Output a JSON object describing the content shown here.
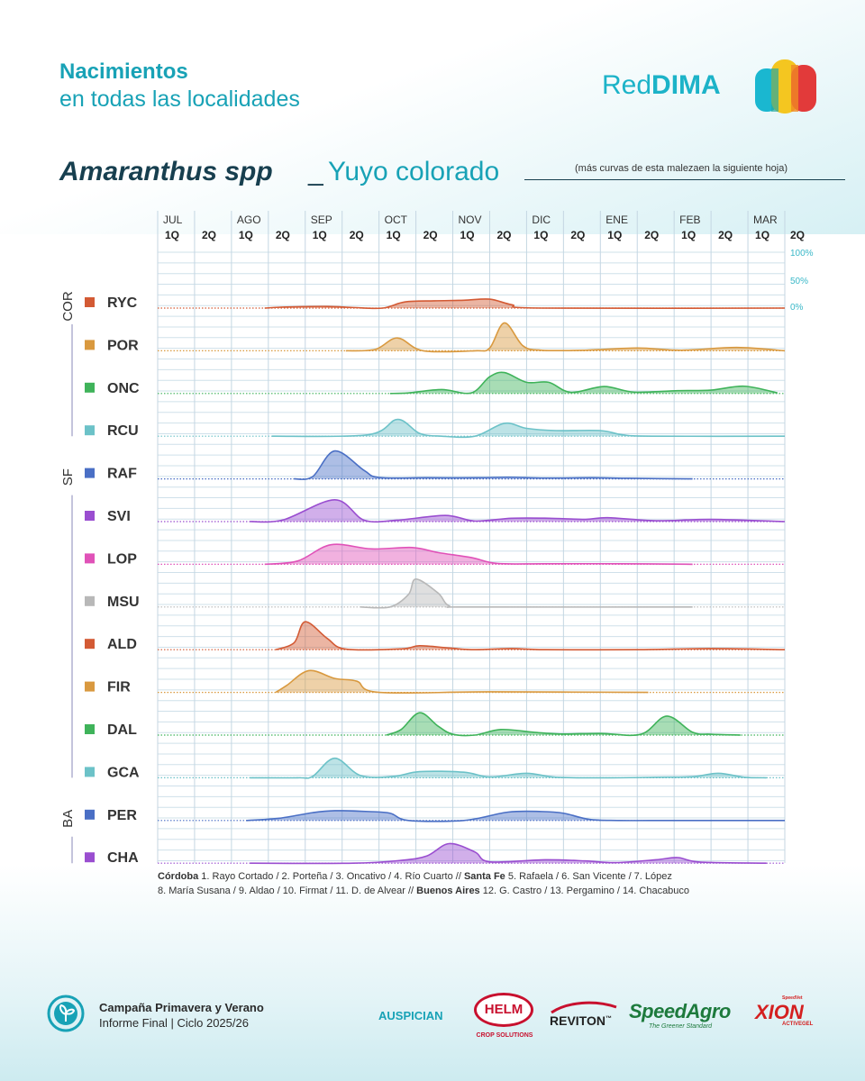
{
  "header": {
    "title": "Nacimientos",
    "subtitle": "en todas las localidades",
    "brand_prefix": "Red",
    "brand_bold": "DIMA"
  },
  "species": {
    "scientific": "Amaranthus spp",
    "separator": "_",
    "common": "Yuyo colorado",
    "note": "(más curvas de esta malezaen la siguiente hoja)"
  },
  "chart_data": {
    "type": "area",
    "x_periods": [
      "1Q",
      "2Q",
      "1Q",
      "2Q",
      "1Q",
      "2Q",
      "1Q",
      "2Q",
      "1Q",
      "2Q",
      "1Q",
      "2Q",
      "1Q",
      "2Q",
      "1Q",
      "2Q",
      "1Q",
      "2Q"
    ],
    "months": [
      "JUL",
      "AGO",
      "SEP",
      "OCT",
      "NOV",
      "DIC",
      "ENE",
      "FEB",
      "MAR"
    ],
    "y_scale_labels": [
      "100%",
      "50%",
      "0%"
    ],
    "groups": [
      {
        "name": "COR",
        "rows": [
          "RYC",
          "POR",
          "ONC",
          "RCU"
        ]
      },
      {
        "name": "SF",
        "rows": [
          "RAF",
          "SVI",
          "LOP",
          "MSU",
          "ALD",
          "FIR",
          "DAL",
          "GCA"
        ]
      },
      {
        "name": "BA",
        "rows": [
          "PER",
          "CHA"
        ]
      }
    ],
    "series": [
      {
        "name": "RYC",
        "color": "#d35a34",
        "points": [
          [
            2.9,
            0
          ],
          [
            3.5,
            0.04
          ],
          [
            4.6,
            0.06
          ],
          [
            5.3,
            0.02
          ],
          [
            6.1,
            0.0
          ],
          [
            6.7,
            0.22
          ],
          [
            7.5,
            0.26
          ],
          [
            8.3,
            0.28
          ],
          [
            9.0,
            0.32
          ],
          [
            9.6,
            0.12
          ],
          [
            10.4,
            0.0
          ],
          [
            17,
            0
          ]
        ]
      },
      {
        "name": "POR",
        "color": "#d9993f",
        "points": [
          [
            5.1,
            0
          ],
          [
            5.9,
            0.05
          ],
          [
            6.5,
            0.46
          ],
          [
            7.2,
            0.0
          ],
          [
            8.6,
            0.0
          ],
          [
            9.0,
            0.1
          ],
          [
            9.4,
            1.0
          ],
          [
            9.9,
            0.18
          ],
          [
            10.4,
            0.02
          ],
          [
            11.6,
            0.02
          ],
          [
            13.0,
            0.1
          ],
          [
            14.2,
            0.02
          ],
          [
            15.7,
            0.12
          ],
          [
            17,
            0
          ]
        ]
      },
      {
        "name": "ONC",
        "color": "#3fb35a",
        "points": [
          [
            6.3,
            0
          ],
          [
            6.8,
            0.02
          ],
          [
            7.7,
            0.14
          ],
          [
            8.5,
            0.02
          ],
          [
            9.0,
            0.6
          ],
          [
            9.4,
            0.75
          ],
          [
            10.0,
            0.4
          ],
          [
            10.6,
            0.4
          ],
          [
            11.2,
            0.04
          ],
          [
            12.1,
            0.25
          ],
          [
            12.9,
            0.05
          ],
          [
            14.1,
            0.1
          ],
          [
            15.0,
            0.12
          ],
          [
            15.9,
            0.26
          ],
          [
            16.8,
            0.02
          ]
        ]
      },
      {
        "name": "RCU",
        "color": "#6cc2c8",
        "points": [
          [
            3.1,
            0
          ],
          [
            5.7,
            0.05
          ],
          [
            6.5,
            0.6
          ],
          [
            7.1,
            0.1
          ],
          [
            7.7,
            0.0
          ],
          [
            8.6,
            0.0
          ],
          [
            9.4,
            0.46
          ],
          [
            10.0,
            0.28
          ],
          [
            10.8,
            0.2
          ],
          [
            12.0,
            0.2
          ],
          [
            12.6,
            0.05
          ],
          [
            13.4,
            0.0
          ],
          [
            17,
            0
          ]
        ]
      },
      {
        "name": "RAF",
        "color": "#4a6fc5",
        "points": [
          [
            3.7,
            0
          ],
          [
            4.2,
            0.08
          ],
          [
            4.8,
            1.0
          ],
          [
            5.6,
            0.3
          ],
          [
            6.0,
            0.05
          ],
          [
            7.3,
            0.04
          ],
          [
            8.7,
            0.04
          ],
          [
            9.5,
            0.06
          ],
          [
            10.5,
            0.03
          ],
          [
            11.8,
            0.04
          ],
          [
            12.8,
            0.02
          ],
          [
            14.5,
            0.0
          ]
        ]
      },
      {
        "name": "SVI",
        "color": "#9a4ed0",
        "points": [
          [
            2.5,
            0
          ],
          [
            3.4,
            0.06
          ],
          [
            4.8,
            0.78
          ],
          [
            5.6,
            0.05
          ],
          [
            6.5,
            0.05
          ],
          [
            7.8,
            0.22
          ],
          [
            8.6,
            0.02
          ],
          [
            9.6,
            0.12
          ],
          [
            10.6,
            0.12
          ],
          [
            11.6,
            0.08
          ],
          [
            12.2,
            0.14
          ],
          [
            13.5,
            0.03
          ],
          [
            15.0,
            0.08
          ],
          [
            17,
            0
          ]
        ]
      },
      {
        "name": "LOP",
        "color": "#e052b8",
        "points": [
          [
            2.9,
            0
          ],
          [
            3.8,
            0.12
          ],
          [
            4.7,
            0.7
          ],
          [
            5.8,
            0.55
          ],
          [
            6.9,
            0.6
          ],
          [
            7.6,
            0.42
          ],
          [
            8.5,
            0.24
          ],
          [
            9.2,
            0.03
          ],
          [
            10.5,
            0.02
          ],
          [
            12.5,
            0.02
          ],
          [
            14.5,
            0.0
          ]
        ]
      },
      {
        "name": "MSU",
        "color": "#b8b8b8",
        "points": [
          [
            5.5,
            0
          ],
          [
            6.3,
            0.0
          ],
          [
            6.8,
            0.45
          ],
          [
            7.0,
            1.0
          ],
          [
            7.6,
            0.5
          ],
          [
            7.9,
            0.04
          ],
          [
            8.5,
            0.0
          ],
          [
            14.5,
            0
          ]
        ]
      },
      {
        "name": "ALD",
        "color": "#d35a34",
        "points": [
          [
            3.2,
            0
          ],
          [
            3.7,
            0.25
          ],
          [
            4.0,
            1.0
          ],
          [
            4.6,
            0.4
          ],
          [
            5.1,
            0.02
          ],
          [
            6.6,
            0.03
          ],
          [
            7.1,
            0.14
          ],
          [
            7.9,
            0.06
          ],
          [
            8.6,
            0.0
          ],
          [
            9.6,
            0.04
          ],
          [
            10.5,
            0.0
          ],
          [
            13.0,
            0.0
          ],
          [
            15.0,
            0.04
          ],
          [
            17,
            0
          ]
        ]
      },
      {
        "name": "FIR",
        "color": "#d9993f",
        "points": [
          [
            3.2,
            0
          ],
          [
            3.5,
            0.25
          ],
          [
            4.1,
            0.78
          ],
          [
            4.8,
            0.5
          ],
          [
            5.4,
            0.4
          ],
          [
            6.0,
            0.0
          ],
          [
            9.0,
            0.02
          ],
          [
            13.3,
            0.0
          ]
        ]
      },
      {
        "name": "DAL",
        "color": "#3fb35a",
        "points": [
          [
            6.2,
            0
          ],
          [
            6.6,
            0.2
          ],
          [
            7.1,
            0.8
          ],
          [
            7.6,
            0.32
          ],
          [
            8.0,
            0.03
          ],
          [
            8.6,
            0.0
          ],
          [
            9.3,
            0.2
          ],
          [
            10.2,
            0.1
          ],
          [
            10.9,
            0.04
          ],
          [
            12.0,
            0.06
          ],
          [
            13.1,
            0.03
          ],
          [
            13.8,
            0.68
          ],
          [
            14.5,
            0.1
          ],
          [
            15.0,
            0.03
          ],
          [
            15.8,
            0.0
          ]
        ]
      },
      {
        "name": "GCA",
        "color": "#6cc2c8",
        "points": [
          [
            2.5,
            0
          ],
          [
            3.8,
            0.0
          ],
          [
            4.2,
            0.05
          ],
          [
            4.8,
            0.7
          ],
          [
            5.5,
            0.08
          ],
          [
            6.4,
            0.05
          ],
          [
            7.1,
            0.22
          ],
          [
            8.3,
            0.2
          ],
          [
            9.0,
            0.03
          ],
          [
            10.0,
            0.16
          ],
          [
            10.8,
            0.02
          ],
          [
            12.3,
            0.0
          ],
          [
            13.5,
            0.02
          ],
          [
            14.5,
            0.04
          ],
          [
            15.2,
            0.16
          ],
          [
            15.9,
            0.02
          ],
          [
            16.5,
            0
          ]
        ]
      },
      {
        "name": "PER",
        "color": "#4a6fc5",
        "points": [
          [
            2.4,
            0
          ],
          [
            3.3,
            0.08
          ],
          [
            4.2,
            0.28
          ],
          [
            4.8,
            0.35
          ],
          [
            5.7,
            0.32
          ],
          [
            6.3,
            0.26
          ],
          [
            6.8,
            0.0
          ],
          [
            8.3,
            0.0
          ],
          [
            9.5,
            0.3
          ],
          [
            10.4,
            0.32
          ],
          [
            11.0,
            0.26
          ],
          [
            11.7,
            0.04
          ],
          [
            12.5,
            0.0
          ],
          [
            14.0,
            0.0
          ],
          [
            16.5,
            0.0
          ],
          [
            17,
            0
          ]
        ]
      },
      {
        "name": "CHA",
        "color": "#9a4ed0",
        "points": [
          [
            2.5,
            0
          ],
          [
            5.3,
            0.0
          ],
          [
            6.6,
            0.1
          ],
          [
            7.3,
            0.26
          ],
          [
            7.9,
            0.7
          ],
          [
            8.6,
            0.4
          ],
          [
            9.0,
            0.05
          ],
          [
            10.5,
            0.12
          ],
          [
            11.6,
            0.08
          ],
          [
            12.4,
            0.02
          ],
          [
            13.5,
            0.12
          ],
          [
            14.1,
            0.2
          ],
          [
            14.7,
            0.04
          ],
          [
            16.5,
            0
          ]
        ]
      }
    ]
  },
  "legend": {
    "line1": [
      {
        "text": "Córdoba",
        "bold": true
      },
      {
        "text": "  1. Rayo Cortado / 2. Porteña / 3. Oncativo / 4. Río Cuarto  //  ",
        "bold": false
      },
      {
        "text": "Santa Fe",
        "bold": true
      },
      {
        "text": "  5. Rafaela / 6. San Vicente / 7. López",
        "bold": false
      }
    ],
    "line2": [
      {
        "text": "8. María Susana / 9. Aldao / 10. Firmat / 11. D. de Alvear  //  ",
        "bold": false
      },
      {
        "text": "Buenos Aires",
        "bold": true
      },
      {
        "text": "  12. G. Castro / 13. Pergamino / 14. Chacabuco",
        "bold": false
      }
    ]
  },
  "footer": {
    "title": "Campaña Primavera y Verano",
    "subtitle": "Informe Final | Ciclo 2025/26",
    "sponsors_label": "AUSPICIAN",
    "sponsors": {
      "helm": "HELM",
      "helm_sub": "CROP SOLUTIONS",
      "reviton": "REVITON",
      "reviton_tm": "™",
      "speedagro": "SpeedAgro",
      "speedagro_sub": "The Greener Standard",
      "xion": "XION",
      "xion_top": "SpeedVet",
      "xion_sub": "ACTIVEGEL"
    }
  }
}
